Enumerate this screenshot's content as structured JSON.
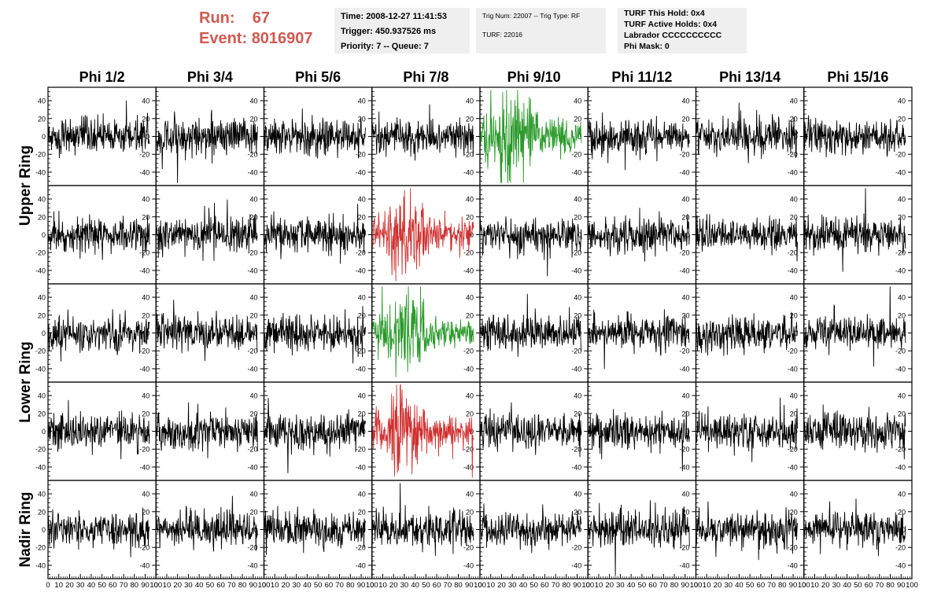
{
  "header": {
    "run_label": "Run:",
    "run_value": "67",
    "event_label": "Event:",
    "event_value": "8016907",
    "time": "Time: 2008-12-27 11:41:53",
    "trigger": "Trigger: 450.937526 ms",
    "priority": "Priority: 7 -- Queue: 7",
    "trig_num": "Trig Num: 22007 -- Trig Type: RF",
    "turf": "TURF: 22016",
    "turf_this_hold": "TURF This Hold: 0x4",
    "turf_active_holds": "TURF Active Holds: 0x4",
    "labrador": "Labrador CCCCCCCCCC",
    "phi_mask": "Phi Mask: 0"
  },
  "chart_data": {
    "type": "line",
    "columns": [
      "Phi 1/2",
      "Phi 3/4",
      "Phi 5/6",
      "Phi 7/8",
      "Phi 9/10",
      "Phi 11/12",
      "Phi 13/14",
      "Phi 15/16"
    ],
    "ring_labels": [
      "Upper Ring",
      "Lower Ring",
      "Nadir Ring"
    ],
    "rows": 5,
    "ring_row_spans": [
      [
        0,
        1
      ],
      [
        2,
        3
      ],
      [
        4,
        4
      ]
    ],
    "ylim": [
      -55,
      55
    ],
    "yticks": [
      -40,
      -20,
      0,
      20,
      40
    ],
    "xlim": [
      0,
      100
    ],
    "xticks": [
      0,
      10,
      20,
      30,
      40,
      50,
      60,
      70,
      80,
      90,
      100
    ],
    "waveform_samples": 260,
    "waveform_x_range": [
      0,
      94
    ],
    "default_color": "#000000",
    "default_amplitude": 18,
    "highlight_cells": [
      {
        "row": 0,
        "col": 4,
        "color": "#2a9a2a",
        "amplitude": 26,
        "envelope": "pulse"
      },
      {
        "row": 1,
        "col": 3,
        "color": "#d03030",
        "amplitude": 24,
        "envelope": "pulse"
      },
      {
        "row": 2,
        "col": 3,
        "color": "#2a9a2a",
        "amplitude": 22,
        "envelope": "pulse"
      },
      {
        "row": 3,
        "col": 3,
        "color": "#d03030",
        "amplitude": 25,
        "envelope": "pulse"
      }
    ]
  }
}
